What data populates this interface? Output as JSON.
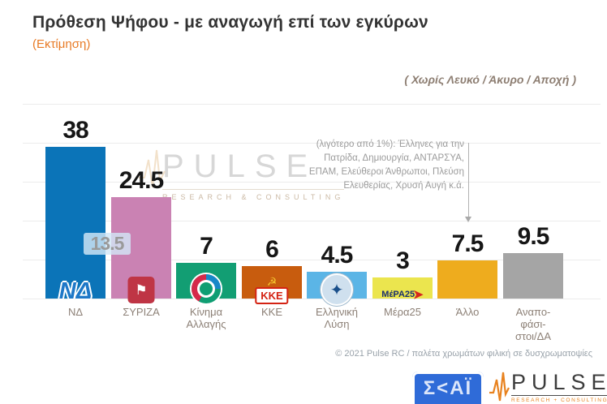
{
  "header": {
    "title": "Πρόθεση Ψήφου - με αναγωγή επί των εγκύρων",
    "subtitle": "(Εκτίμηση)",
    "filter_note": "( Χωρίς Λευκό / Άκυρο / Αποχή )"
  },
  "annotation": {
    "lines": [
      "(λιγότερο από 1%): Έλληνες για την",
      "Πατρίδα, Δημιουργία, ΑΝΤΑΡΣΥΑ,",
      "ΕΠΑΜ, Ελεύθεροι Άνθρωποι, Πλεύση",
      "Ελευθερίας, Χρυσή Αυγή κ.ά."
    ],
    "points_to": "Άλλο"
  },
  "diff_badge": "13.5",
  "chart_data": {
    "type": "bar",
    "title": "Πρόθεση Ψήφου - με αναγωγή επί των εγκύρων",
    "subtitle": "(Εκτίμηση)",
    "note": "( Χωρίς Λευκό / Άκυρο / Αποχή )",
    "categories": [
      "ΝΔ",
      "ΣΥΡΙΖΑ",
      "Κίνημα Αλλαγής",
      "ΚΚΕ",
      "Ελληνική Λύση",
      "Μέρα25",
      "Άλλο",
      "Αναποφάσιστοι/ΔΑ"
    ],
    "values": [
      38,
      24.5,
      7,
      6,
      4.5,
      3,
      7.5,
      9.5
    ],
    "ylim": [
      0,
      40
    ],
    "grid": true,
    "legend": "none",
    "gap_between_first_two": 13.5,
    "parties": [
      {
        "name": "ΝΔ",
        "value": 38,
        "value_label": "38",
        "color": "#0b74b8",
        "label_lines": [
          "ΝΔ"
        ],
        "logo_text": "ΝΔ"
      },
      {
        "name": "ΣΥΡΙΖΑ",
        "value": 24.5,
        "value_label": "24.5",
        "color": "#ca82b3",
        "label_lines": [
          "ΣΥΡΙΖΑ"
        ],
        "logo_text": "⚑"
      },
      {
        "name": "Κίνημα Αλλαγής",
        "value": 7,
        "value_label": "7",
        "color": "#129e73",
        "label_lines": [
          "Κίνημα",
          "Αλλαγής"
        ],
        "logo_text": ""
      },
      {
        "name": "ΚΚΕ",
        "value": 6,
        "value_label": "6",
        "color": "#c85c0e",
        "label_lines": [
          "ΚΚΕ"
        ],
        "logo_text": "ΚΚΕ",
        "logo_emblem": "☭"
      },
      {
        "name": "Ελληνική Λύση",
        "value": 4.5,
        "value_label": "4.5",
        "color": "#5bb5e6",
        "label_lines": [
          "Ελληνική",
          "Λύση"
        ],
        "logo_text": "✦"
      },
      {
        "name": "Μέρα25",
        "value": 3,
        "value_label": "3",
        "color": "#ebe54e",
        "label_lines": [
          "Μέρα25"
        ],
        "logo_text": "ΜέΡΑ25",
        "logo_emblem": "➤"
      },
      {
        "name": "Άλλο",
        "value": 7.5,
        "value_label": "7.5",
        "color": "#eeac1e",
        "label_lines": [
          "Άλλο"
        ],
        "logo_text": ""
      },
      {
        "name": "Αναποφάσιστοι/ΔΑ",
        "value": 9.5,
        "value_label": "9.5",
        "color": "#a5a5a5",
        "label_lines": [
          "Αναπο-",
          "φάσι-",
          "στοι/ΔΑ"
        ],
        "logo_text": ""
      }
    ]
  },
  "watermark": {
    "text": "PULSE",
    "sub": "RESEARCH & CONSULTING"
  },
  "footer": {
    "credit": "© 2021 Pulse RC  /  παλέτα χρωμάτων φιλική σε δυσχρωματοψίες",
    "skai_logo_text": "Σ<ΑΪ",
    "pulse_logo_text": "PULSE",
    "pulse_logo_sub": "RESEARCH + CONSULTING"
  }
}
